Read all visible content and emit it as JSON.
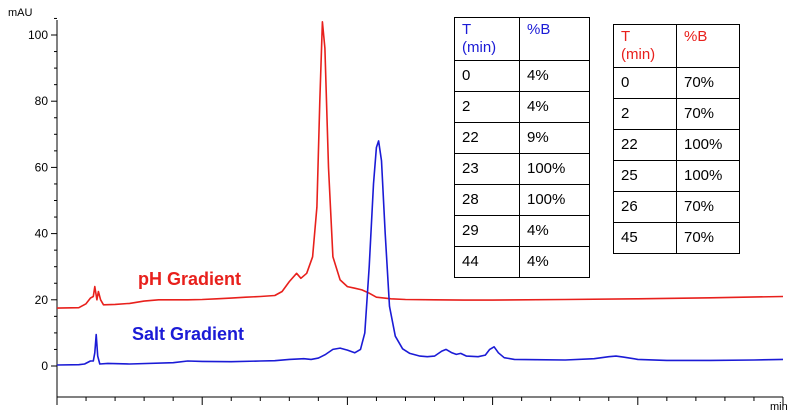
{
  "chart_data": {
    "type": "line",
    "xlabel": "min",
    "ylabel": "mAU",
    "ylim": [
      -5,
      107
    ],
    "xlim": [
      0,
      50
    ],
    "y_ticks": [
      "0",
      "20",
      "40",
      "60",
      "80",
      "100"
    ],
    "grid": false,
    "series": [
      {
        "name": "pH Gradient",
        "color": "#e8201c",
        "points": [
          [
            0,
            17.5
          ],
          [
            1.5,
            17.6
          ],
          [
            2,
            18.8
          ],
          [
            2.3,
            20.5
          ],
          [
            2.5,
            21
          ],
          [
            2.6,
            24
          ],
          [
            2.75,
            20
          ],
          [
            2.85,
            22.5
          ],
          [
            3,
            20
          ],
          [
            3.2,
            18.5
          ],
          [
            4,
            18.6
          ],
          [
            5,
            18.9
          ],
          [
            6,
            19.6
          ],
          [
            7,
            20
          ],
          [
            8,
            20
          ],
          [
            9,
            20
          ],
          [
            10,
            20.1
          ],
          [
            11,
            20.3
          ],
          [
            12,
            20.5
          ],
          [
            13,
            20.8
          ],
          [
            14,
            21
          ],
          [
            15,
            21.3
          ],
          [
            15.5,
            22.5
          ],
          [
            16,
            25.5
          ],
          [
            16.5,
            28
          ],
          [
            16.8,
            26.5
          ],
          [
            17.2,
            28
          ],
          [
            17.6,
            33
          ],
          [
            17.9,
            48
          ],
          [
            18.1,
            80
          ],
          [
            18.28,
            104
          ],
          [
            18.45,
            96
          ],
          [
            18.7,
            60
          ],
          [
            19,
            33
          ],
          [
            19.5,
            26
          ],
          [
            20,
            24
          ],
          [
            20.5,
            23.5
          ],
          [
            21,
            23
          ],
          [
            21.5,
            22
          ],
          [
            22,
            20.8
          ],
          [
            23,
            20.3
          ],
          [
            24,
            20.1
          ],
          [
            26,
            20
          ],
          [
            28,
            19.9
          ],
          [
            30,
            19.9
          ],
          [
            35,
            20.1
          ],
          [
            40,
            20.3
          ],
          [
            45,
            20.6
          ],
          [
            50,
            21
          ]
        ]
      },
      {
        "name": "Salt Gradient",
        "color": "#1b1bd6",
        "points": [
          [
            0,
            0.3
          ],
          [
            1.5,
            0.4
          ],
          [
            1.9,
            0.6
          ],
          [
            2.3,
            1.5
          ],
          [
            2.5,
            1.5
          ],
          [
            2.6,
            4
          ],
          [
            2.7,
            9.5
          ],
          [
            2.8,
            3
          ],
          [
            2.95,
            0.6
          ],
          [
            3.5,
            0.8
          ],
          [
            5,
            0.6
          ],
          [
            8,
            1
          ],
          [
            9,
            1.5
          ],
          [
            10,
            1.4
          ],
          [
            12,
            1.3
          ],
          [
            14,
            1.5
          ],
          [
            15,
            1.6
          ],
          [
            16,
            2
          ],
          [
            17,
            2.2
          ],
          [
            17.5,
            2
          ],
          [
            18,
            2.4
          ],
          [
            18.5,
            3.5
          ],
          [
            19,
            5
          ],
          [
            19.5,
            5.4
          ],
          [
            20,
            4.8
          ],
          [
            20.5,
            4
          ],
          [
            20.9,
            5
          ],
          [
            21.2,
            10
          ],
          [
            21.5,
            30
          ],
          [
            21.8,
            55
          ],
          [
            22,
            66
          ],
          [
            22.15,
            68
          ],
          [
            22.35,
            62
          ],
          [
            22.6,
            40
          ],
          [
            22.9,
            18
          ],
          [
            23.3,
            9
          ],
          [
            23.8,
            5.2
          ],
          [
            24.3,
            3.8
          ],
          [
            25,
            3
          ],
          [
            25.5,
            2.8
          ],
          [
            26,
            3
          ],
          [
            26.5,
            4.5
          ],
          [
            26.8,
            5
          ],
          [
            27.2,
            4
          ],
          [
            27.5,
            3.5
          ],
          [
            27.8,
            3.8
          ],
          [
            28.2,
            3
          ],
          [
            29,
            2.8
          ],
          [
            29.5,
            3.3
          ],
          [
            29.8,
            5
          ],
          [
            30.1,
            5.8
          ],
          [
            30.4,
            4
          ],
          [
            30.8,
            2.5
          ],
          [
            31.5,
            2
          ],
          [
            33,
            1.9
          ],
          [
            35,
            1.8
          ],
          [
            37,
            2.2
          ],
          [
            38,
            2.8
          ],
          [
            38.5,
            3
          ],
          [
            39,
            2.7
          ],
          [
            40,
            2
          ],
          [
            42,
            1.7
          ],
          [
            45,
            1.7
          ],
          [
            48,
            1.8
          ],
          [
            50,
            2
          ]
        ]
      }
    ]
  },
  "tables": {
    "salt": {
      "header": [
        "T\n(min)",
        "%B"
      ],
      "rows": [
        [
          "0",
          "4%"
        ],
        [
          "2",
          "4%"
        ],
        [
          "22",
          "9%"
        ],
        [
          "23",
          "100%"
        ],
        [
          "28",
          "100%"
        ],
        [
          "29",
          "4%"
        ],
        [
          "44",
          "4%"
        ]
      ]
    },
    "ph": {
      "header": [
        "T\n(min)",
        "%B"
      ],
      "rows": [
        [
          "0",
          "70%"
        ],
        [
          "2",
          "70%"
        ],
        [
          "22",
          "100%"
        ],
        [
          "25",
          "100%"
        ],
        [
          "26",
          "70%"
        ],
        [
          "45",
          "70%"
        ]
      ]
    }
  }
}
